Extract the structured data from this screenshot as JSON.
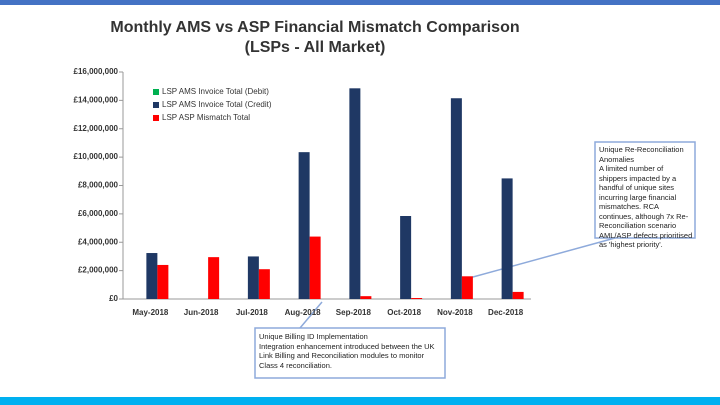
{
  "chart_data": {
    "type": "bar",
    "title": "Monthly AMS vs ASP Financial Mismatch Comparison",
    "subtitle": "(LSPs - All Market)",
    "categories": [
      "May-2018",
      "Jun-2018",
      "Jul-2018",
      "Aug-2018",
      "Sep-2018",
      "Oct-2018",
      "Nov-2018",
      "Dec-2018"
    ],
    "series": [
      {
        "name": "LSP AMS Invoice Total (Debit)",
        "color": "#00b050",
        "values": [
          null,
          null,
          null,
          null,
          null,
          null,
          null,
          null
        ]
      },
      {
        "name": "LSP AMS Invoice Total (Credit)",
        "color": "#1f3864",
        "values": [
          3240000,
          null,
          3000000,
          10350000,
          14850000,
          5850000,
          14150000,
          8500000
        ]
      },
      {
        "name": "LSP ASP Mismatch Total",
        "color": "#ff0000",
        "values": [
          2400000,
          2950000,
          2100000,
          4400000,
          200000,
          70000,
          1600000,
          500000
        ]
      }
    ],
    "ylim": [
      0,
      16000000
    ],
    "yticks": [
      {
        "value": 0,
        "label": "£0"
      },
      {
        "value": 2000000,
        "label": "£2,000,000"
      },
      {
        "value": 4000000,
        "label": "£4,000,000"
      },
      {
        "value": 6000000,
        "label": "£6,000,000"
      },
      {
        "value": 8000000,
        "label": "£8,000,000"
      },
      {
        "value": 10000000,
        "label": "£10,000,000"
      },
      {
        "value": 12000000,
        "label": "£12,000,000"
      },
      {
        "value": 14000000,
        "label": "£14,000,000"
      },
      {
        "value": 16000000,
        "label": "£16,000,000"
      }
    ],
    "grid": false,
    "legend": "upper left",
    "annotations": [
      {
        "title": "Unique Re-Reconciliation Anomalies",
        "text": "A limited number of shippers impacted by a handful of unique sites incurring large financial mismatches. RCA continues, although 7x Re-Reconciliation scenario AML/ASP defects prioritised as 'highest priority'."
      },
      {
        "title": "Unique Billing ID Implementation",
        "text": "Integration enhancement introduced between the UK Link Billing and Reconciliation modules to monitor Class 4 reconciliation."
      }
    ]
  }
}
